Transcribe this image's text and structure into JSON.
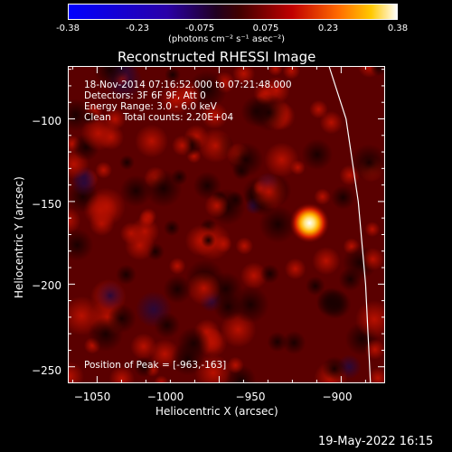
{
  "colorbar": {
    "ticks": [
      "-0.38",
      "-0.23",
      "-0.075",
      "0.075",
      "0.23",
      "0.38"
    ],
    "unit_label": "(photons cm⁻² s⁻¹ asec⁻²)",
    "min": -0.38,
    "max": 0.38
  },
  "title": "Reconstructed RHESSI Image",
  "info": {
    "line1": "18-Nov-2014 07:16:52.000 to 07:21:48.000",
    "line2": "Detectors: 3F 6F 9F, Att 0",
    "line3": "Energy Range: 3.0 - 6.0 keV",
    "line4": "Clean    Total counts: 2.20E+04"
  },
  "peak_text": "Position of Peak = [-963,-163]",
  "footer_timestamp": "19-May-2022 16:15",
  "chart_data": {
    "type": "heatmap",
    "title": "Reconstructed RHESSI Image",
    "xlabel": "Heliocentric X (arcsec)",
    "ylabel": "Heliocentric Y (arcsec)",
    "xlim": [
      -1062,
      -932
    ],
    "ylim": [
      -260,
      -68
    ],
    "xticks": [
      -1050,
      -1000,
      -950,
      -900
    ],
    "xtick_labels": [
      "−1050",
      "−1000",
      "−950",
      "−900"
    ],
    "yticks": [
      -100,
      -150,
      -200,
      -250
    ],
    "ytick_labels": [
      "−100",
      "−150",
      "−200",
      "−250"
    ],
    "peak": {
      "x": -963,
      "y": -163,
      "value": 0.38
    },
    "limb_curve": [
      [
        -955,
        -68
      ],
      [
        -948,
        -100
      ],
      [
        -943,
        -150
      ],
      [
        -940,
        -200
      ],
      [
        -938,
        -260
      ]
    ],
    "colormap": "red-temperature",
    "value_range": [
      -0.38,
      0.38
    ]
  }
}
